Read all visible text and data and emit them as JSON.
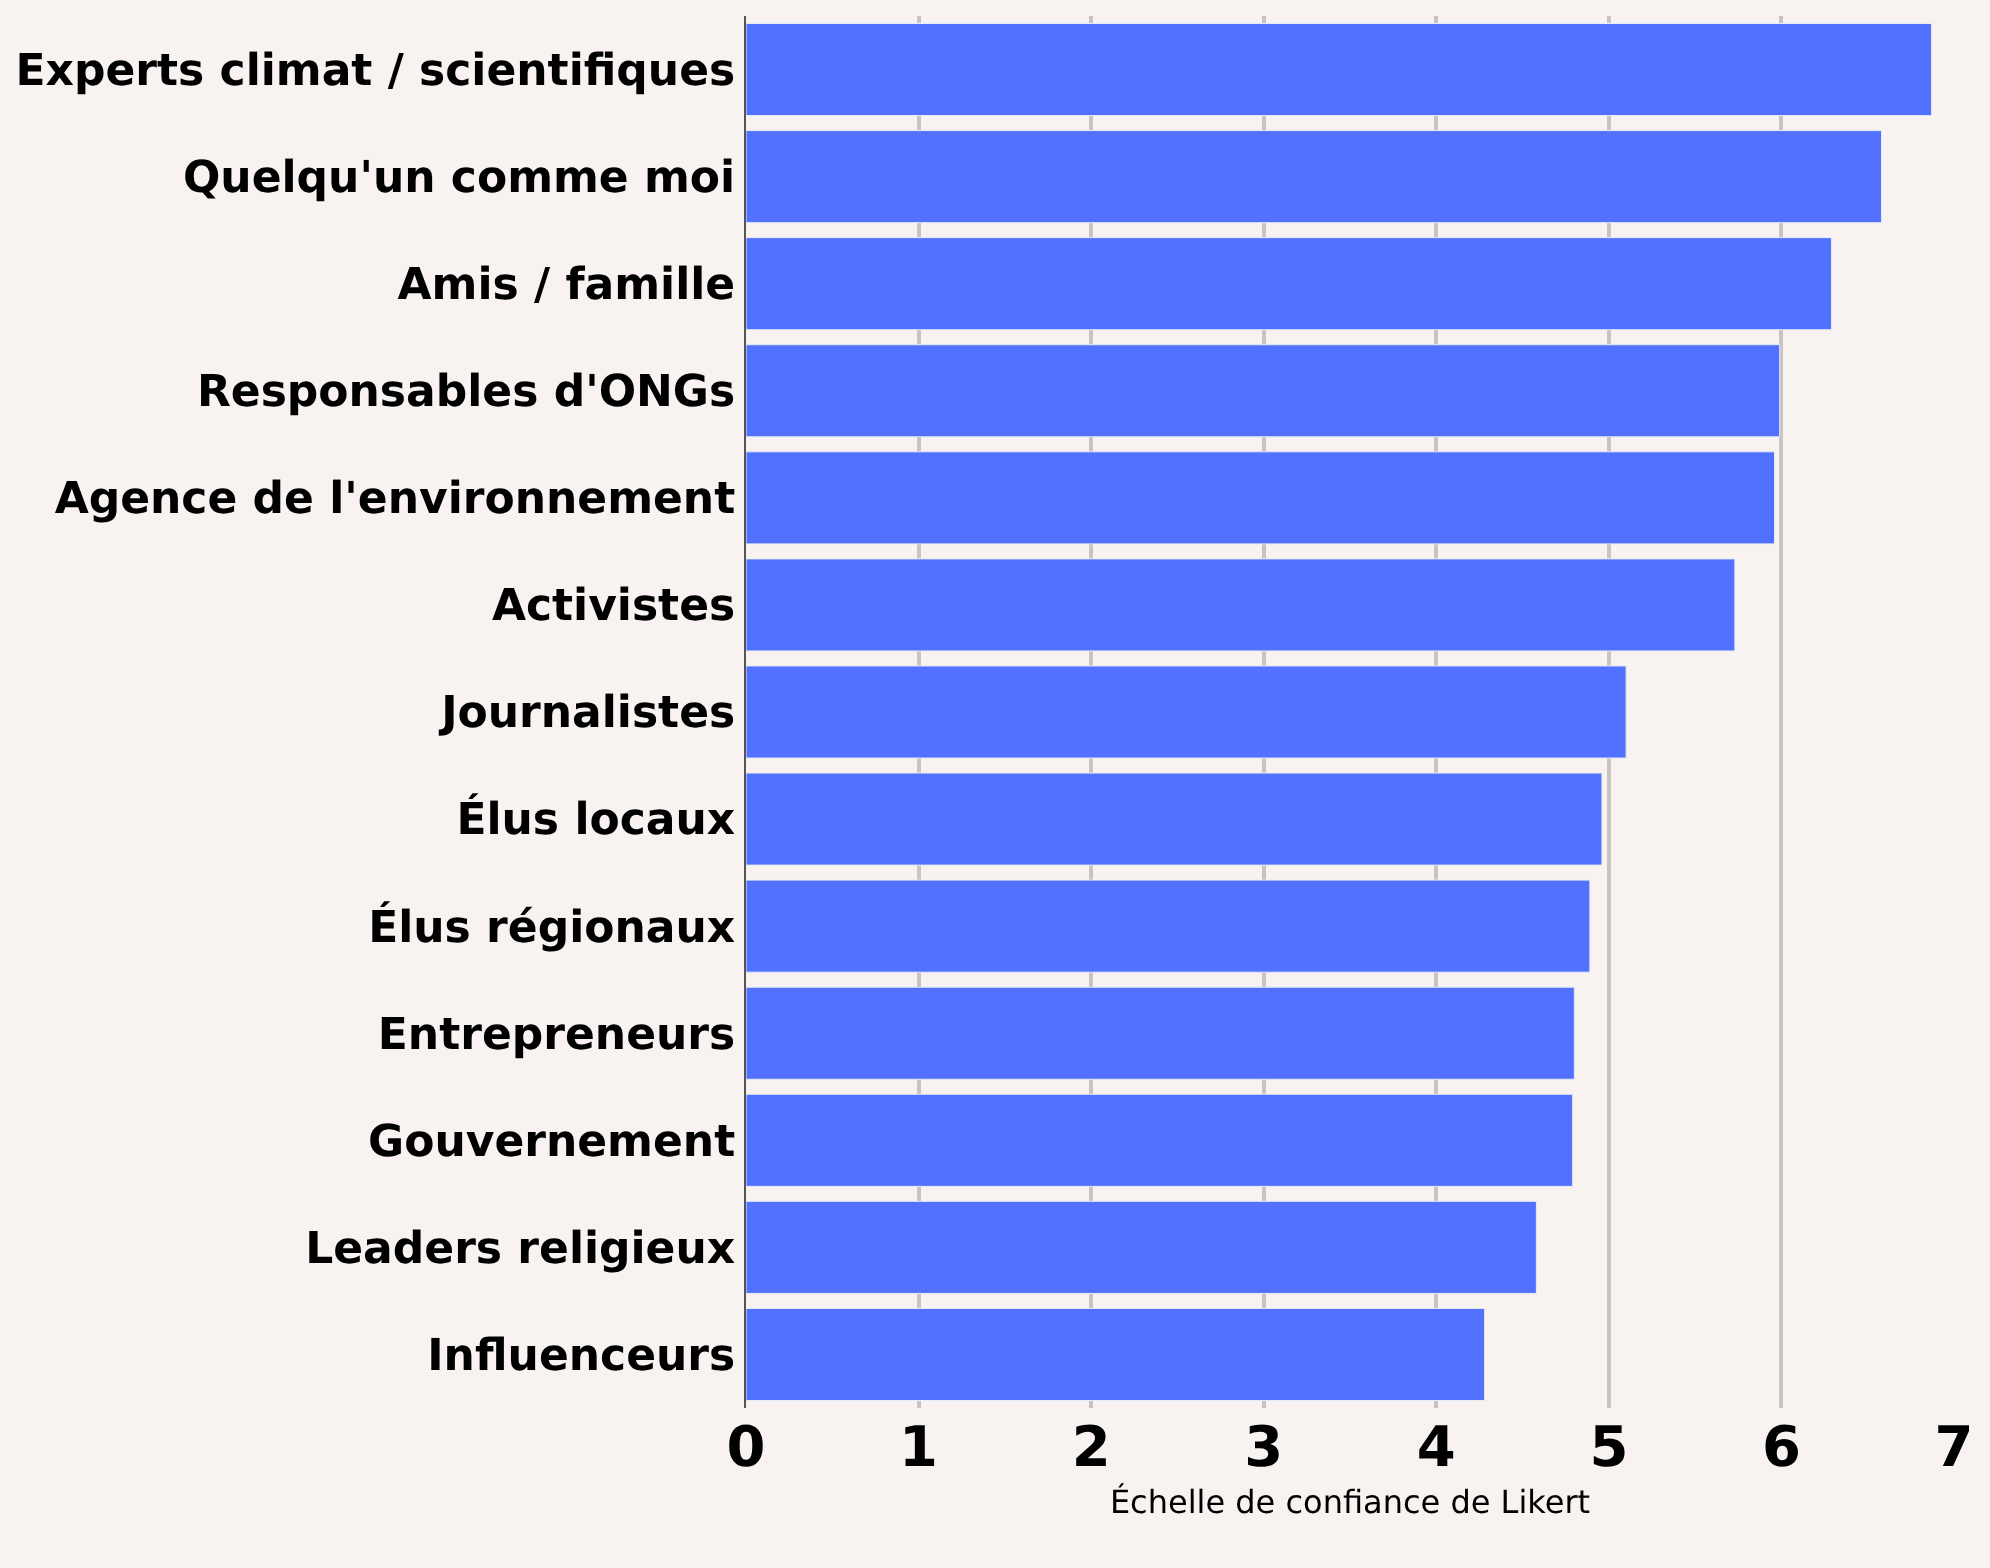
{
  "chart_data": {
    "type": "bar",
    "orientation": "horizontal",
    "xlabel": "Échelle de confiance de Likert",
    "categories": [
      "Experts climat / scientifiques",
      "Quelqu'un comme moi",
      "Amis / famille",
      "Responsables d'ONGs",
      "Agence de l'environnement",
      "Activistes",
      "Journalistes",
      "Élus locaux",
      "Élus régionaux",
      "Entrepreneurs",
      "Gouvernement",
      "Leaders religieux",
      "Influenceurs"
    ],
    "values": [
      6.87,
      6.58,
      6.29,
      5.99,
      5.96,
      5.73,
      5.1,
      4.96,
      4.89,
      4.8,
      4.79,
      4.58,
      4.28
    ],
    "color": "#5271ff",
    "xlim": [
      0,
      7
    ],
    "xticks": [
      0,
      1,
      2,
      3,
      4,
      5,
      6,
      7
    ],
    "grid": "x"
  }
}
